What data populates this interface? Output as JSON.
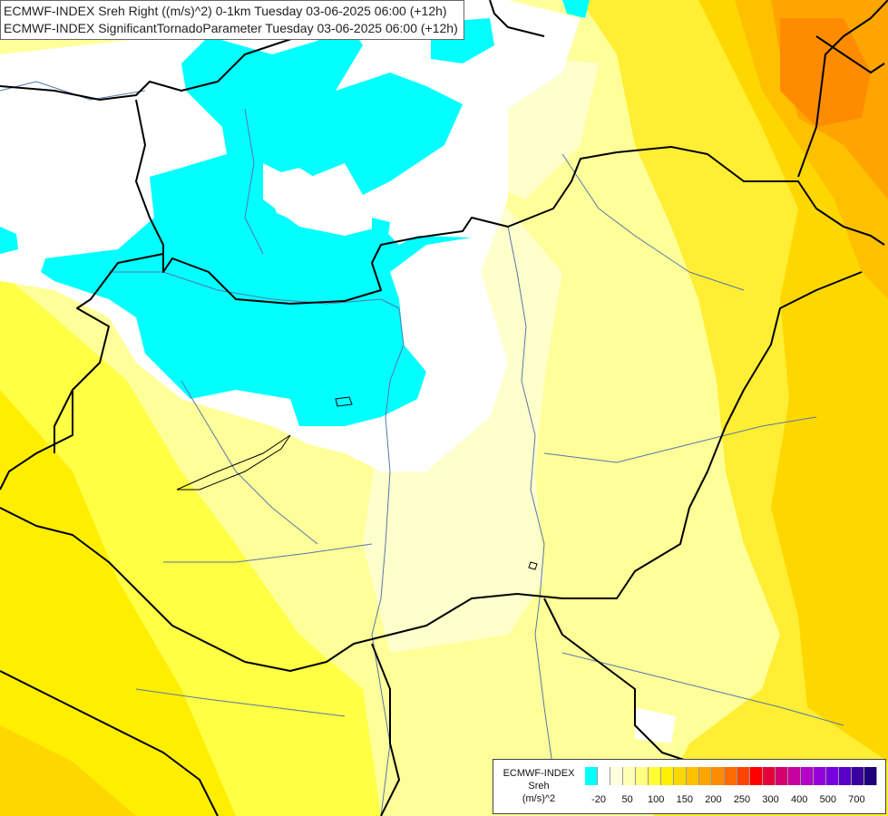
{
  "header": {
    "line1": "ECMWF-INDEX Sreh Right ((m/s)^2) 0-1km Tuesday 03-06-2025 06:00 (+12h)",
    "line2": "ECMWF-INDEX SignificantTornadoParameter Tuesday 03-06-2025 06:00 (+12h)"
  },
  "legend": {
    "title_line1": "ECMWF-INDEX",
    "title_line2": "Sreh",
    "title_line3": "(m/s)^2",
    "colors": [
      "#00ffff",
      "#ffffff",
      "#ffffe0",
      "#ffffb3",
      "#ffff80",
      "#ffff33",
      "#ffee00",
      "#ffd700",
      "#ffc000",
      "#ffa500",
      "#ff8c00",
      "#ff6a00",
      "#ff4500",
      "#ff0000",
      "#e8003a",
      "#d4006e",
      "#c800a0",
      "#b400c8",
      "#9600dc",
      "#7800dc",
      "#5a00c8",
      "#3c00a0",
      "#1e0078"
    ],
    "ticks": [
      "-20",
      "50",
      "100",
      "150",
      "200",
      "250",
      "300",
      "400",
      "500",
      "700"
    ]
  }
}
